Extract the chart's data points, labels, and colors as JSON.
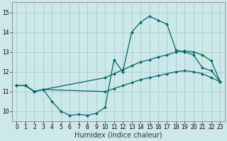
{
  "background_color": "#cce8e8",
  "grid_color": "#aacccc",
  "line_color": "#006666",
  "marker_color": "#006666",
  "xlabel": "Humidex (Indice chaleur)",
  "ylim": [
    9.5,
    15.5
  ],
  "xlim": [
    -0.5,
    23.5
  ],
  "yticks": [
    10,
    11,
    12,
    13,
    14,
    15
  ],
  "xticks": [
    0,
    1,
    2,
    3,
    4,
    5,
    6,
    7,
    8,
    9,
    10,
    11,
    12,
    13,
    14,
    15,
    16,
    17,
    18,
    19,
    20,
    21,
    22,
    23
  ],
  "series": [
    {
      "x": [
        0,
        1,
        2,
        3,
        4,
        5,
        6,
        7,
        8,
        9,
        10,
        11,
        12,
        13,
        14,
        15,
        16,
        17,
        18,
        19,
        20,
        21,
        22,
        23
      ],
      "y": [
        11.3,
        11.3,
        11.0,
        11.1,
        10.5,
        10.0,
        9.8,
        9.85,
        9.8,
        9.9,
        10.2,
        12.6,
        12.0,
        14.0,
        14.5,
        14.8,
        14.6,
        14.4,
        13.1,
        13.0,
        12.85,
        12.2,
        12.05,
        11.5
      ]
    },
    {
      "x": [
        0,
        1,
        2,
        3,
        10,
        11,
        12,
        13,
        14,
        15,
        16,
        17,
        18,
        19,
        20,
        21,
        22,
        23
      ],
      "y": [
        11.3,
        11.3,
        11.0,
        11.1,
        11.7,
        11.9,
        12.1,
        12.3,
        12.5,
        12.6,
        12.75,
        12.85,
        13.0,
        13.05,
        13.0,
        12.85,
        12.55,
        11.5
      ]
    },
    {
      "x": [
        0,
        1,
        2,
        3,
        10,
        11,
        12,
        13,
        14,
        15,
        16,
        17,
        18,
        19,
        20,
        21,
        22,
        23
      ],
      "y": [
        11.3,
        11.3,
        11.0,
        11.1,
        11.0,
        11.15,
        11.3,
        11.45,
        11.6,
        11.7,
        11.8,
        11.9,
        12.0,
        12.05,
        12.0,
        11.9,
        11.7,
        11.5
      ]
    }
  ],
  "xlabel_fontsize": 7,
  "tick_fontsize": 5.5,
  "linewidth": 0.9,
  "markersize": 2.0
}
